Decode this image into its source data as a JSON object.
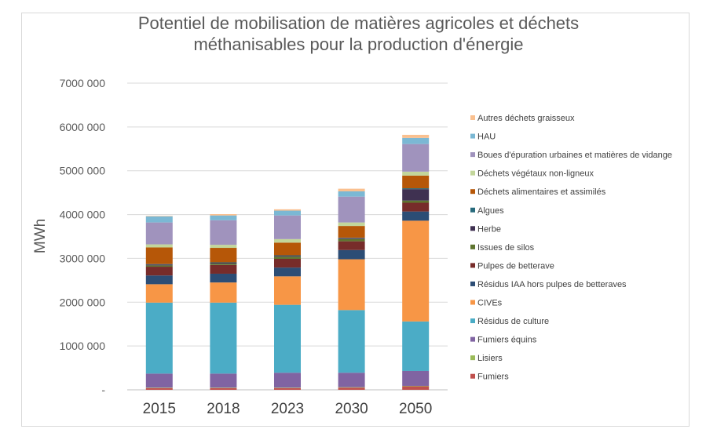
{
  "chart_data": {
    "type": "bar",
    "stacked": true,
    "title_lines": [
      "Potentiel de mobilisation de matières agricoles et déchets",
      "méthanisables pour la production d'énergie"
    ],
    "ylabel": "MWh",
    "xlabel": "",
    "ylim": [
      0,
      7000000
    ],
    "yticks": [
      0,
      1000000,
      2000000,
      3000000,
      4000000,
      5000000,
      6000000,
      7000000
    ],
    "ytick_labels": [
      "-",
      "1000 000",
      "2000 000",
      "3000 000",
      "4000 000",
      "5000 000",
      "6000 000",
      "7000 000"
    ],
    "grid": true,
    "legend_position": "right",
    "categories": [
      "2015",
      "2018",
      "2023",
      "2030",
      "2050"
    ],
    "series": [
      {
        "name": "Fumiers",
        "color": "#c0504d",
        "values": [
          40000,
          40000,
          40000,
          50000,
          80000
        ]
      },
      {
        "name": "Lisiers",
        "color": "#9bbb59",
        "values": [
          10000,
          10000,
          10000,
          10000,
          10000
        ]
      },
      {
        "name": "Fumiers équins",
        "color": "#8064a2",
        "values": [
          320000,
          320000,
          340000,
          330000,
          340000
        ]
      },
      {
        "name": "Résidus de culture",
        "color": "#4bacc6",
        "values": [
          1620000,
          1620000,
          1550000,
          1430000,
          1130000
        ]
      },
      {
        "name": "CIVEs",
        "color": "#f79646",
        "values": [
          420000,
          460000,
          650000,
          1160000,
          2300000
        ]
      },
      {
        "name": "Résidus IAA hors pulpes de betteraves",
        "color": "#2c4d75",
        "values": [
          200000,
          200000,
          200000,
          210000,
          210000
        ]
      },
      {
        "name": "Pulpes de betterave",
        "color": "#772c2a",
        "values": [
          200000,
          200000,
          200000,
          200000,
          200000
        ]
      },
      {
        "name": "Issues de silos",
        "color": "#5f7530",
        "values": [
          30000,
          30000,
          50000,
          50000,
          50000
        ]
      },
      {
        "name": "Herbe",
        "color": "#3f3151",
        "values": [
          20000,
          20000,
          20000,
          20000,
          260000
        ]
      },
      {
        "name": "Algues",
        "color": "#276a7c",
        "values": [
          10000,
          10000,
          10000,
          10000,
          20000
        ]
      },
      {
        "name": "Déchets alimentaires et assimilés",
        "color": "#b65708",
        "values": [
          380000,
          330000,
          290000,
          270000,
          290000
        ]
      },
      {
        "name": "Déchets végétaux non-ligneux",
        "color": "#c3d69b",
        "values": [
          70000,
          70000,
          80000,
          80000,
          90000
        ]
      },
      {
        "name": "Boues d'épuration urbaines et matières de vidange",
        "color": "#a093bd",
        "values": [
          500000,
          560000,
          540000,
          590000,
          630000
        ]
      },
      {
        "name": "HAU",
        "color": "#7bb8d4",
        "values": [
          140000,
          110000,
          110000,
          120000,
          140000
        ]
      },
      {
        "name": "Autres déchets graisseux",
        "color": "#fac08f",
        "values": [
          10000,
          30000,
          30000,
          60000,
          70000
        ]
      }
    ]
  }
}
